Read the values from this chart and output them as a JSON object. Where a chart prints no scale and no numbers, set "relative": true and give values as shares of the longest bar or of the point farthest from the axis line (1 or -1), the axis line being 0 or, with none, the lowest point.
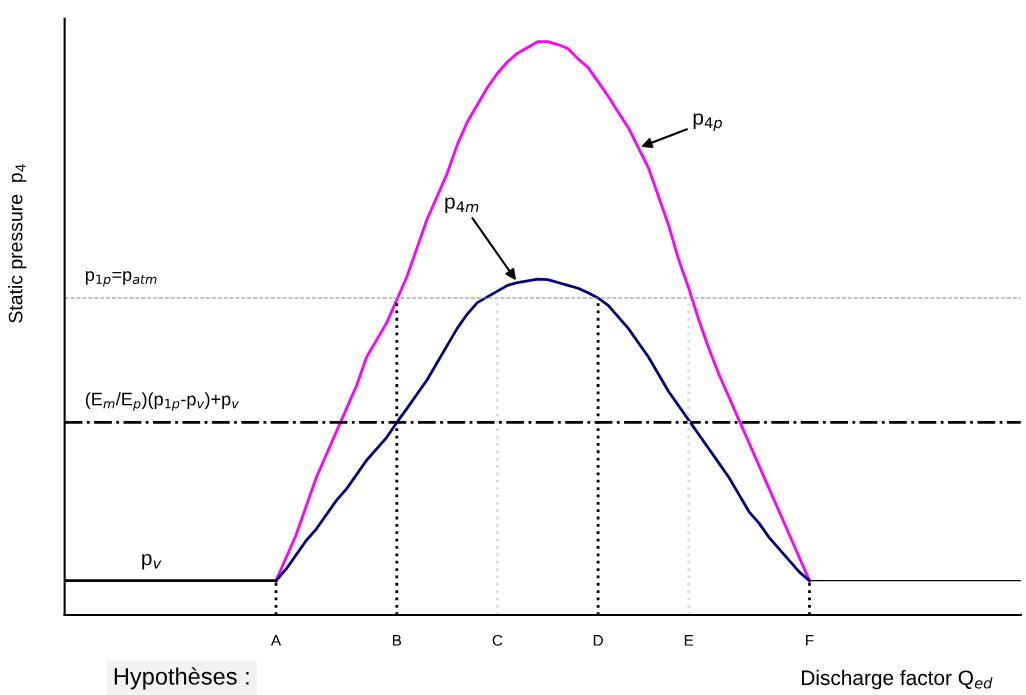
{
  "chart_data": {
    "type": "line",
    "relative": true,
    "xlabel": "Discharge factor Q$_{ed}$",
    "ylabel": "Static pressure  p$_{4}$",
    "categories": [
      null,
      null,
      null,
      null,
      null,
      null,
      null,
      null,
      null,
      null,
      null,
      null,
      null,
      null,
      null,
      null,
      null,
      null,
      null,
      null,
      null,
      "A",
      null,
      null,
      null,
      null,
      null,
      null,
      null,
      null,
      null,
      null,
      null,
      "B",
      null,
      null,
      null,
      null,
      null,
      null,
      null,
      null,
      null,
      "C",
      null,
      null,
      null,
      null,
      null,
      null,
      null,
      null,
      null,
      "D",
      null,
      null,
      null,
      null,
      null,
      null,
      null,
      null,
      "E",
      null,
      null,
      null,
      null,
      null,
      null,
      null,
      null,
      null,
      null,
      null,
      "F",
      null,
      null,
      null,
      null,
      null,
      null,
      null,
      null,
      null,
      null,
      null,
      null,
      null,
      null,
      null,
      null,
      null,
      null,
      null,
      null,
      null
    ],
    "grid": false,
    "legend": false,
    "series": [
      {
        "name": "p$_{4p}$",
        "color": "#ff00ff",
        "values": [
          null,
          null,
          null,
          null,
          null,
          null,
          null,
          null,
          null,
          null,
          null,
          null,
          null,
          null,
          null,
          null,
          null,
          null,
          null,
          null,
          null,
          0.06,
          0.1,
          0.14,
          0.19,
          0.24,
          0.28,
          0.32,
          0.36,
          0.4,
          0.45,
          0.48,
          0.51,
          0.55,
          0.59,
          0.64,
          0.69,
          0.73,
          0.77,
          0.82,
          0.86,
          0.89,
          0.92,
          0.945,
          0.965,
          0.98,
          0.99,
          1.0,
          1.0,
          0.995,
          0.988,
          0.97,
          0.955,
          0.93,
          0.905,
          0.877,
          0.85,
          0.815,
          0.78,
          0.73,
          0.68,
          0.62,
          0.57,
          0.515,
          0.465,
          0.42,
          0.38,
          0.34,
          0.3,
          0.26,
          0.22,
          0.18,
          0.14,
          0.1,
          0.06,
          null,
          null,
          null,
          null,
          null,
          null,
          null,
          null,
          null,
          null,
          null,
          null,
          null,
          null,
          null,
          null,
          null,
          null,
          null,
          null,
          null
        ]
      },
      {
        "name": "p$_{4m}$",
        "color": "#000080",
        "values": [
          null,
          null,
          null,
          null,
          null,
          null,
          null,
          null,
          null,
          null,
          null,
          null,
          null,
          null,
          null,
          null,
          null,
          null,
          null,
          null,
          null,
          0.06,
          0.08,
          0.105,
          0.13,
          0.15,
          0.175,
          0.2,
          0.22,
          0.245,
          0.27,
          0.29,
          0.31,
          0.336,
          0.36,
          0.385,
          0.41,
          0.44,
          0.47,
          0.5,
          0.525,
          0.545,
          0.555,
          0.565,
          0.575,
          0.58,
          0.583,
          0.586,
          0.585,
          0.58,
          0.575,
          0.57,
          0.562,
          0.553,
          0.54,
          0.52,
          0.5,
          0.475,
          0.45,
          0.42,
          0.39,
          0.365,
          0.34,
          0.315,
          0.29,
          0.265,
          0.24,
          0.21,
          0.18,
          0.16,
          0.135,
          0.115,
          0.095,
          0.075,
          0.06,
          null,
          null,
          null,
          null,
          null,
          null,
          null,
          null,
          null,
          null,
          null,
          null,
          null,
          null,
          null,
          null,
          null,
          null,
          null,
          null,
          null
        ]
      },
      {
        "name": "p$_{v}$",
        "color": "#000000",
        "values": [
          0.06,
          0.06,
          0.06,
          0.06,
          0.06,
          0.06,
          0.06,
          0.06,
          0.06,
          0.06,
          0.06,
          0.06,
          0.06,
          0.06,
          0.06,
          0.06,
          0.06,
          0.06,
          0.06,
          0.06,
          0.06,
          0.06,
          null,
          null,
          null,
          null,
          null,
          null,
          null,
          null,
          null,
          null,
          null,
          null,
          null,
          null,
          null,
          null,
          null,
          null,
          null,
          null,
          null,
          null,
          null,
          null,
          null,
          null,
          null,
          null,
          null,
          null,
          null,
          null,
          null,
          null,
          null,
          null,
          null,
          null,
          null,
          null,
          null,
          null,
          null,
          null,
          null,
          null,
          null,
          null,
          null,
          null,
          null,
          null,
          null,
          null,
          null,
          null,
          null,
          null,
          null,
          null,
          null,
          null,
          null,
          null,
          null,
          null,
          null,
          null,
          null,
          null,
          null,
          null,
          null,
          null
        ]
      },
      {
        "color": "#000000",
        "values": [
          null,
          null,
          null,
          null,
          null,
          null,
          null,
          null,
          null,
          null,
          null,
          null,
          null,
          null,
          null,
          null,
          null,
          null,
          null,
          null,
          null,
          null,
          null,
          null,
          null,
          null,
          null,
          null,
          null,
          null,
          null,
          null,
          null,
          null,
          null,
          null,
          null,
          null,
          null,
          null,
          null,
          null,
          null,
          null,
          null,
          null,
          null,
          null,
          null,
          null,
          null,
          null,
          null,
          null,
          null,
          null,
          null,
          null,
          null,
          null,
          null,
          null,
          null,
          null,
          null,
          null,
          null,
          null,
          null,
          null,
          null,
          null,
          null,
          null,
          0.06,
          0.06,
          0.06,
          0.06,
          0.06,
          0.06,
          0.06,
          0.06,
          0.06,
          0.06,
          0.06,
          0.06,
          0.06,
          0.06,
          0.06,
          0.06,
          0.06,
          0.06,
          0.06,
          0.06,
          0.06,
          0.06
        ]
      }
    ],
    "ref_lines": [
      {
        "axis": "y",
        "value": 0.553,
        "label": "p$_{1p}$=p$_{atm}$",
        "color": "#888888",
        "line_style": "dashed"
      },
      {
        "axis": "y",
        "value": 0.336,
        "label": "(E$_{m}$/E$_{p}$)(p$_{1p}$-p$_{v}$)+p$_{v}$",
        "color": "#000000",
        "line_style": "dashdot"
      },
      {
        "axis": "x",
        "value": "B",
        "color": "#000000",
        "line_style": "dotted"
      },
      {
        "axis": "x",
        "value": "C",
        "color": "#dddddd",
        "line_style": "dotted"
      },
      {
        "axis": "x",
        "value": "D",
        "color": "#000000",
        "line_style": "dotted"
      },
      {
        "axis": "x",
        "value": "E",
        "color": "#dddddd",
        "line_style": "dotted"
      }
    ],
    "annotations": [
      "Hypothèses :"
    ]
  }
}
